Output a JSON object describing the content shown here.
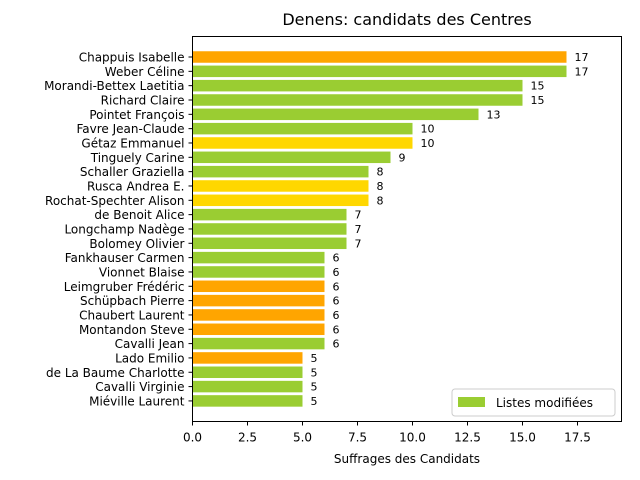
{
  "chart_data": {
    "type": "bar",
    "orientation": "horizontal",
    "title": "Denens: candidats des Centres",
    "xlabel": "Suffrages des Candidats",
    "ylabel": "",
    "xlim": [
      0,
      19.5
    ],
    "xticks": [
      0.0,
      2.5,
      5.0,
      7.5,
      10.0,
      12.5,
      15.0,
      17.5
    ],
    "xtick_labels": [
      "0.0",
      "2.5",
      "5.0",
      "7.5",
      "10.0",
      "12.5",
      "15.0",
      "17.5"
    ],
    "grid": false,
    "legend": {
      "position": "lower-right",
      "entries": [
        {
          "label": "Listes modifiées",
          "color": "#9acd32"
        }
      ]
    },
    "colors": {
      "green": "#9acd32",
      "orange": "#ffa500",
      "gold": "#ffd700"
    },
    "bars": [
      {
        "name": "Chappuis Isabelle",
        "value": 17,
        "label": "17",
        "color": "#ffa500"
      },
      {
        "name": "Weber Céline",
        "value": 17,
        "label": "17",
        "color": "#9acd32"
      },
      {
        "name": "Morandi-Bettex Laetitia",
        "value": 15,
        "label": "15",
        "color": "#9acd32"
      },
      {
        "name": "Richard Claire",
        "value": 15,
        "label": "15",
        "color": "#9acd32"
      },
      {
        "name": "Pointet François",
        "value": 13,
        "label": "13",
        "color": "#9acd32"
      },
      {
        "name": "Favre Jean-Claude",
        "value": 10,
        "label": "10",
        "color": "#9acd32"
      },
      {
        "name": "Gétaz Emmanuel",
        "value": 10,
        "label": "10",
        "color": "#ffd700"
      },
      {
        "name": "Tinguely Carine",
        "value": 9,
        "label": "9",
        "color": "#9acd32"
      },
      {
        "name": "Schaller Graziella",
        "value": 8,
        "label": "8",
        "color": "#9acd32"
      },
      {
        "name": "Rusca Andrea E.",
        "value": 8,
        "label": "8",
        "color": "#ffd700"
      },
      {
        "name": "Rochat-Spechter Alison",
        "value": 8,
        "label": "8",
        "color": "#ffd700"
      },
      {
        "name": "de Benoit Alice",
        "value": 7,
        "label": "7",
        "color": "#9acd32"
      },
      {
        "name": "Longchamp Nadège",
        "value": 7,
        "label": "7",
        "color": "#9acd32"
      },
      {
        "name": "Bolomey Olivier",
        "value": 7,
        "label": "7",
        "color": "#9acd32"
      },
      {
        "name": "Fankhauser Carmen",
        "value": 6,
        "label": "6",
        "color": "#9acd32"
      },
      {
        "name": "Vionnet Blaise",
        "value": 6,
        "label": "6",
        "color": "#9acd32"
      },
      {
        "name": "Leimgruber Frédéric",
        "value": 6,
        "label": "6",
        "color": "#ffa500"
      },
      {
        "name": "Schüpbach Pierre",
        "value": 6,
        "label": "6",
        "color": "#ffa500"
      },
      {
        "name": "Chaubert Laurent",
        "value": 6,
        "label": "6",
        "color": "#ffa500"
      },
      {
        "name": "Montandon Steve",
        "value": 6,
        "label": "6",
        "color": "#ffa500"
      },
      {
        "name": "Cavalli Jean",
        "value": 6,
        "label": "6",
        "color": "#9acd32"
      },
      {
        "name": "Lado Emilio",
        "value": 5,
        "label": "5",
        "color": "#ffa500"
      },
      {
        "name": "de La Baume Charlotte",
        "value": 5,
        "label": "5",
        "color": "#9acd32"
      },
      {
        "name": "Cavalli Virginie",
        "value": 5,
        "label": "5",
        "color": "#9acd32"
      },
      {
        "name": "Miéville Laurent",
        "value": 5,
        "label": "5",
        "color": "#9acd32"
      }
    ]
  }
}
